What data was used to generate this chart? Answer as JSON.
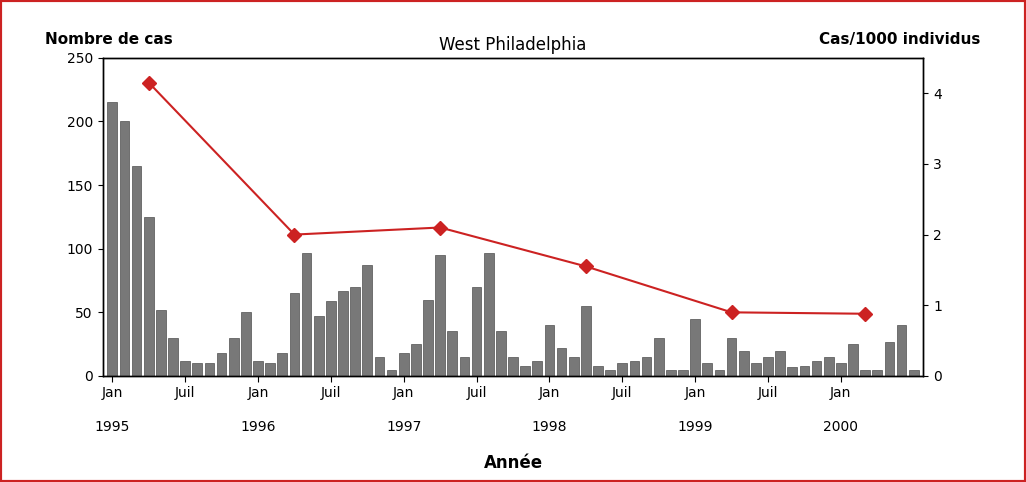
{
  "title": "West Philadelphia",
  "xlabel": "Année",
  "ylabel_left": "Nombre de cas",
  "ylabel_right": "Cas/1000 individus",
  "bar_color": "#787878",
  "bar_edge_color": "#505050",
  "line_color": "#cc2222",
  "background_color": "#ffffff",
  "border_color": "#cc2222",
  "ylim_left": [
    0,
    250
  ],
  "ylim_right": [
    0,
    4.5
  ],
  "yticks_left": [
    0,
    50,
    100,
    150,
    200,
    250
  ],
  "yticks_right": [
    0,
    1,
    2,
    3,
    4
  ],
  "bars": [
    215,
    200,
    165,
    125,
    52,
    30,
    12,
    10,
    10,
    18,
    30,
    50,
    12,
    10,
    18,
    65,
    97,
    47,
    59,
    67,
    70,
    87,
    15,
    5,
    18,
    25,
    60,
    95,
    35,
    15,
    70,
    97,
    35,
    15,
    8,
    12,
    40,
    22,
    15,
    55,
    8,
    5,
    10,
    12,
    15,
    30,
    5,
    5,
    45,
    10,
    5,
    30,
    20,
    10,
    15,
    20,
    7,
    8,
    12,
    15,
    10,
    25,
    5,
    5,
    27,
    40,
    5
  ],
  "jan_positions": [
    0,
    12,
    24,
    36,
    48,
    60
  ],
  "juil_positions": [
    6,
    18,
    30,
    42,
    54
  ],
  "year_labels": {
    "0": "1995",
    "12": "1996",
    "24": "1997",
    "36": "1998",
    "48": "1999",
    "60": "2000"
  },
  "line_x": [
    3,
    15,
    27,
    39,
    51,
    62
  ],
  "line_y": [
    4.15,
    2.0,
    2.1,
    1.55,
    0.9,
    0.88
  ]
}
